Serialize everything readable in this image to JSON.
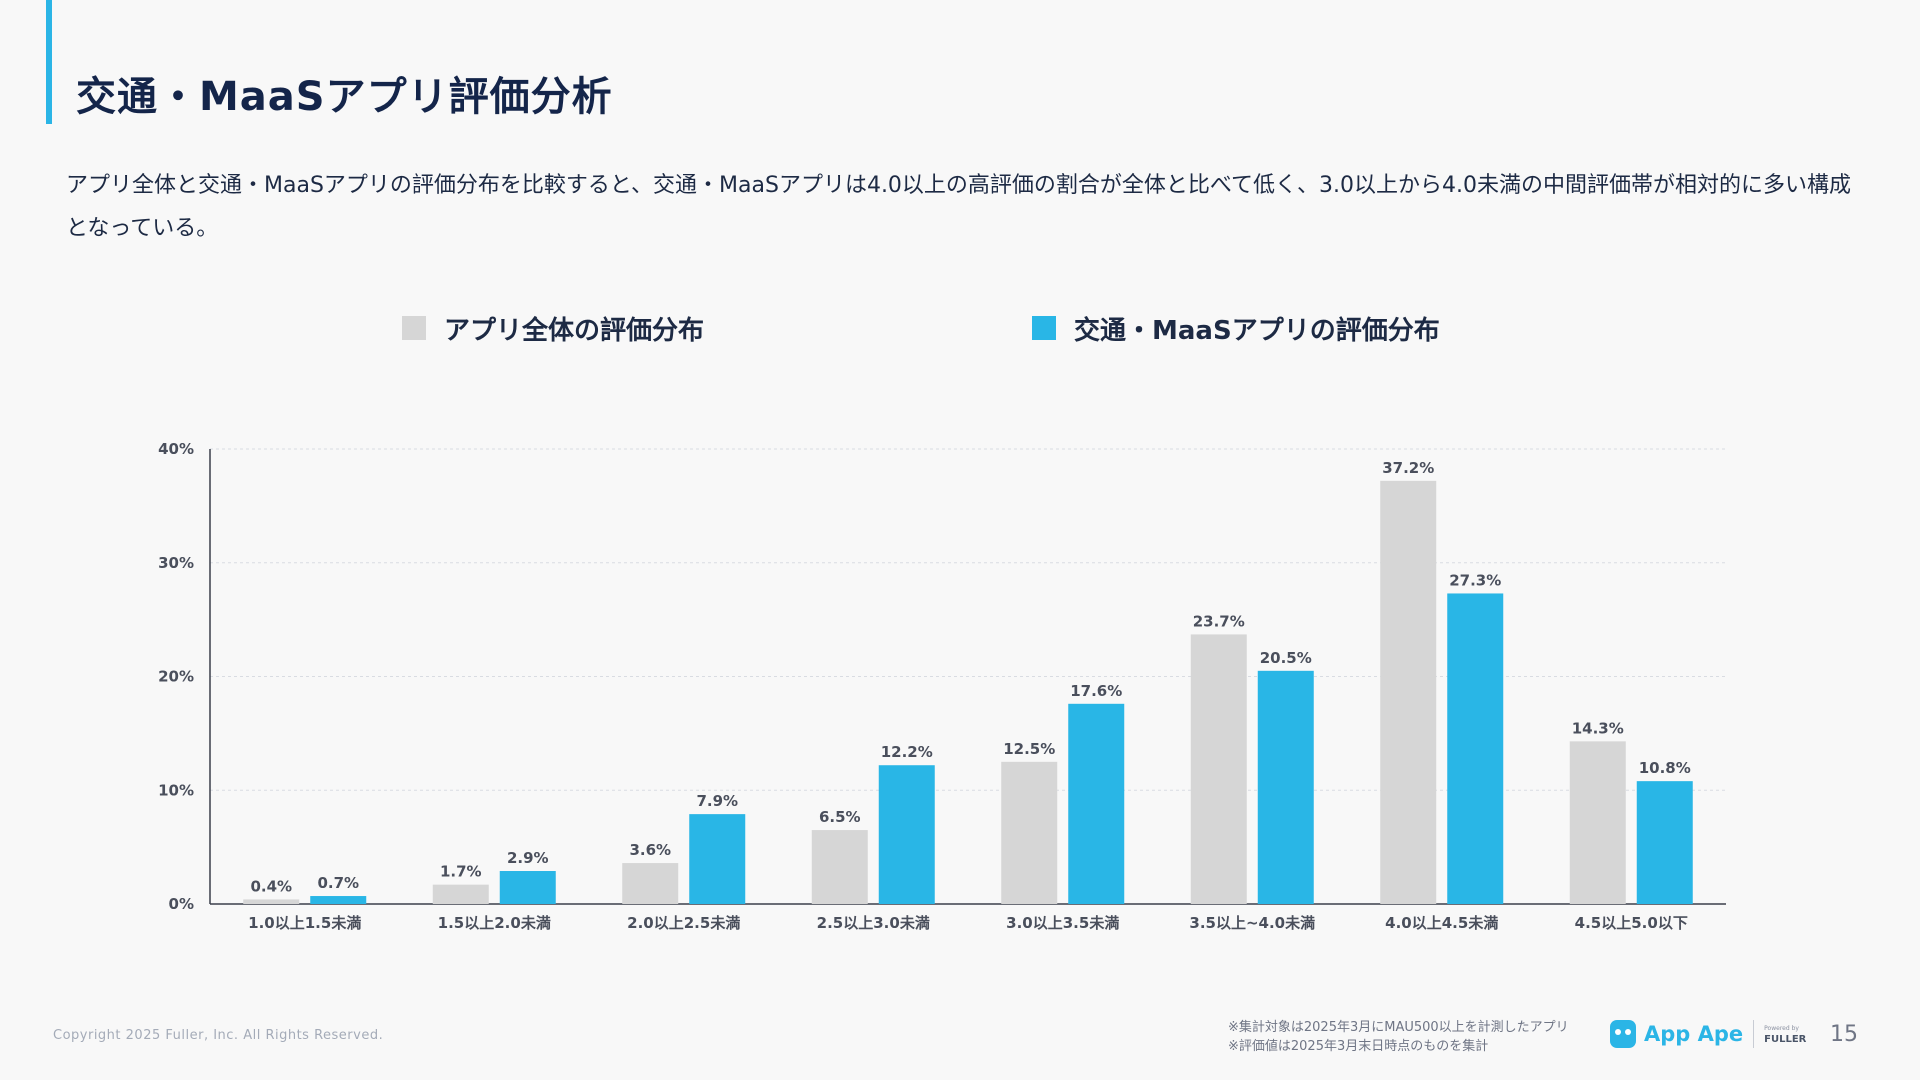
{
  "title": "交通・MaaSアプリ評価分析",
  "description": "アプリ全体と交通・MaaSアプリの評価分布を比較すると、交通・MaaSアプリは4.0以上の高評価の割合が全体と比べて低く、3.0以上から4.0未満の中間評価帯が相対的に多い構成となっている。",
  "legend": {
    "all_label": "アプリ全体の評価分布",
    "maas_label": "交通・MaaSアプリの評価分布"
  },
  "colors": {
    "all": "#d6d6d6",
    "maas": "#29b6e6",
    "accent": "#2bb5e6"
  },
  "chart_data": {
    "type": "bar",
    "title": "",
    "xlabel": "",
    "ylabel": "",
    "ylim": [
      0,
      40
    ],
    "yticks": [
      "0%",
      "10%",
      "20%",
      "30%",
      "40%"
    ],
    "ytick_values": [
      0,
      10,
      20,
      30,
      40
    ],
    "categories": [
      "1.0以上1.5未満",
      "1.5以上2.0未満",
      "2.0以上2.5未満",
      "2.5以上3.0未満",
      "3.0以上3.5未満",
      "3.5以上~4.0未満",
      "4.0以上4.5未満",
      "4.5以上5.0以下"
    ],
    "series": [
      {
        "name": "アプリ全体の評価分布",
        "values": [
          0.4,
          1.7,
          3.6,
          6.5,
          12.5,
          23.7,
          37.2,
          14.3
        ],
        "labels": [
          "0.4%",
          "1.7%",
          "3.6%",
          "6.5%",
          "12.5%",
          "23.7%",
          "37.2%",
          "14.3%"
        ]
      },
      {
        "name": "交通・MaaSアプリの評価分布",
        "values": [
          0.7,
          2.9,
          7.9,
          12.2,
          17.6,
          20.5,
          27.3,
          10.8
        ],
        "labels": [
          "0.7%",
          "2.9%",
          "7.9%",
          "12.2%",
          "17.6%",
          "20.5%",
          "27.3%",
          "10.8%"
        ]
      }
    ],
    "grid": true,
    "legend_position": "top"
  },
  "footer": {
    "copyright": "Copyright 2025 Fuller, Inc. All Rights Reserved.",
    "note1": "※集計対象は2025年3月にMAU500以上を計測したアプリ",
    "note2": "※評価値は2025年3月末日時点のものを集計",
    "brand_name": "App Ape",
    "brand_powered": "Powered by",
    "brand_company": "FULLER",
    "page_number": "15"
  }
}
